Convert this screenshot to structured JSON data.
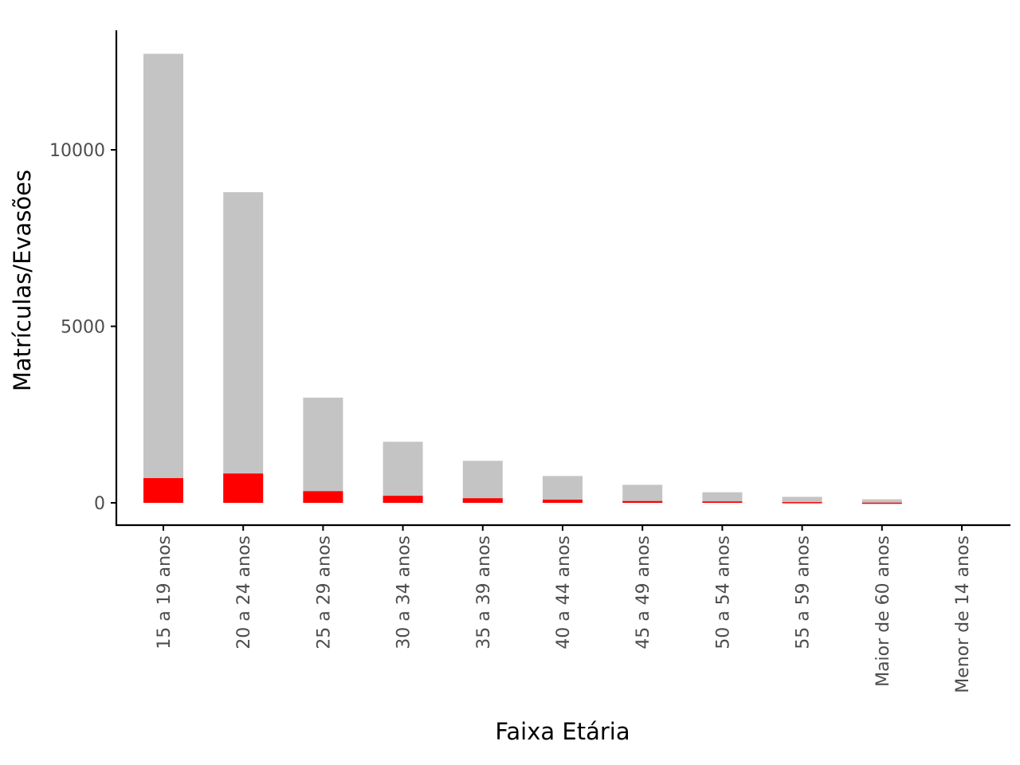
{
  "chart_data": {
    "type": "bar",
    "title": "",
    "xlabel": "Faixa Etária",
    "ylabel": "Matrículas/Evasões",
    "categories": [
      "15 a 19 anos",
      "20 a 24 anos",
      "25 a 29 anos",
      "30 a 34 anos",
      "35 a 39 anos",
      "40 a 44 anos",
      "45 a 49 anos",
      "50 a 54 anos",
      "55 a 59 anos",
      "Maior de 60 anos",
      "Menor de 14 anos"
    ],
    "series": [
      {
        "values": [
          12720,
          8800,
          2980,
          1730,
          1190,
          760,
          510,
          300,
          170,
          100,
          0
        ],
        "color": "#c4c4c4"
      },
      {
        "values": [
          700,
          830,
          330,
          200,
          130,
          90,
          50,
          40,
          20,
          5,
          0
        ],
        "color": "#ff0000"
      }
    ],
    "yticks": [
      0,
      5000,
      10000
    ],
    "ylim": [
      -650,
      13400
    ],
    "overlay": true,
    "grid": false,
    "legend": "none"
  }
}
